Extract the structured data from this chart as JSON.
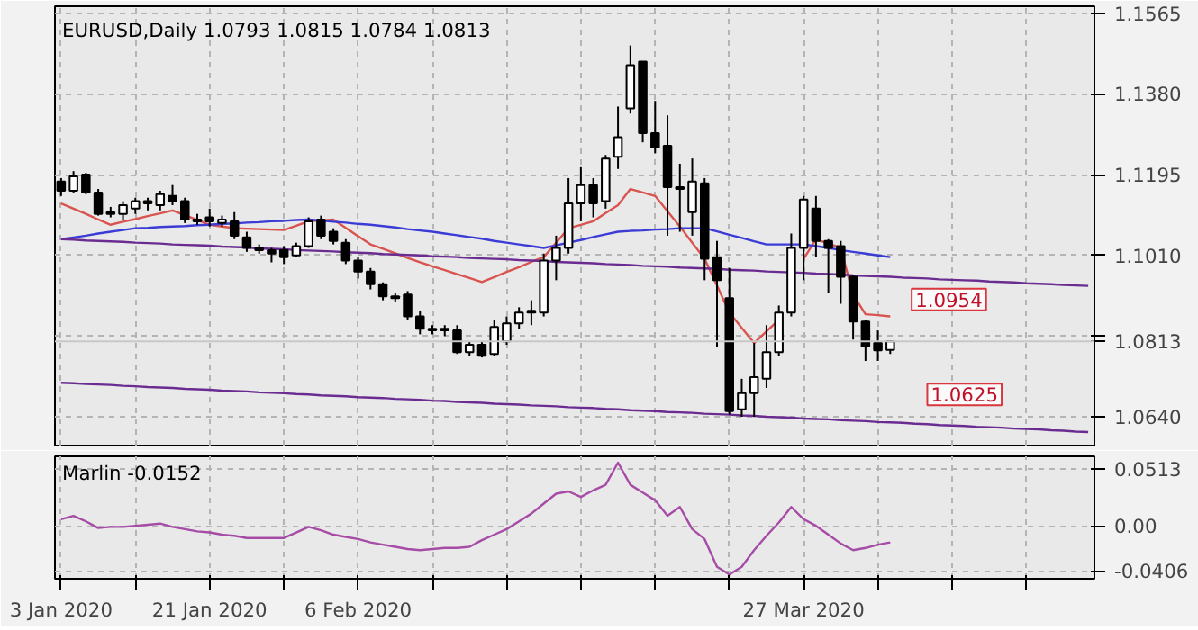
{
  "chart_data": [
    {
      "type": "candlestick",
      "title": "EURUSD,Daily 1.0793 1.0815 1.0784 1.0813",
      "ohlc": [
        [
          1.1179,
          1.1187,
          1.1146,
          1.1158
        ],
        [
          1.1158,
          1.1203,
          1.1154,
          1.1191
        ],
        [
          1.1195,
          1.1199,
          1.115,
          1.1154
        ],
        [
          1.1154,
          1.1162,
          1.1101,
          1.1105
        ],
        [
          1.1105,
          1.1121,
          1.1097,
          1.1109
        ],
        [
          1.1105,
          1.1134,
          1.1092,
          1.1125
        ],
        [
          1.1117,
          1.1142,
          1.1105,
          1.1134
        ],
        [
          1.1134,
          1.1142,
          1.1113,
          1.1129
        ],
        [
          1.1125,
          1.1158,
          1.1113,
          1.115
        ],
        [
          1.1146,
          1.1171,
          1.1125,
          1.1134
        ],
        [
          1.1134,
          1.1142,
          1.1084,
          1.1092
        ],
        [
          1.1092,
          1.1105,
          1.108,
          1.1088
        ],
        [
          1.1097,
          1.1117,
          1.1076,
          1.1088
        ],
        [
          1.1084,
          1.1101,
          1.1076,
          1.1092
        ],
        [
          1.1088,
          1.1109,
          1.1047,
          1.1055
        ],
        [
          1.1051,
          1.1064,
          1.1018,
          1.1027
        ],
        [
          1.1027,
          1.1035,
          1.1014,
          1.1022
        ],
        [
          1.1022,
          1.1027,
          1.0994,
          1.1014
        ],
        [
          1.1022,
          1.1031,
          1.099,
          1.1006
        ],
        [
          1.101,
          1.1039,
          1.1006,
          1.1031
        ],
        [
          1.1031,
          1.1097,
          1.1027,
          1.1088
        ],
        [
          1.1092,
          1.1101,
          1.1047,
          1.1055
        ],
        [
          1.1064,
          1.1072,
          1.1035,
          1.1043
        ],
        [
          1.1039,
          1.1047,
          1.099,
          1.0998
        ],
        [
          1.0998,
          1.1006,
          1.0957,
          1.0973
        ],
        [
          1.0973,
          1.0981,
          1.0932,
          1.0944
        ],
        [
          1.0944,
          1.0948,
          1.0907,
          1.0916
        ],
        [
          1.0916,
          1.0924,
          1.0903,
          1.0912
        ],
        [
          1.092,
          1.0928,
          1.0862,
          1.087
        ],
        [
          1.087,
          1.0883,
          1.0829,
          1.0842
        ],
        [
          1.0842,
          1.085,
          1.0829,
          1.0838
        ],
        [
          1.0838,
          1.085,
          1.0825,
          1.0842
        ],
        [
          1.0838,
          1.085,
          1.0784,
          1.0788
        ],
        [
          1.0788,
          1.0813,
          1.078,
          1.0805
        ],
        [
          1.0805,
          1.0813,
          1.0776,
          1.078
        ],
        [
          1.0784,
          1.0862,
          1.078,
          1.0846
        ],
        [
          1.0813,
          1.087,
          1.0805,
          1.0854
        ],
        [
          1.0854,
          1.0891,
          1.0842,
          1.0879
        ],
        [
          1.0879,
          1.0907,
          1.085,
          1.0883
        ],
        [
          1.0879,
          1.1014,
          1.087,
          1.0998
        ],
        [
          1.0998,
          1.1055,
          1.0953,
          1.1027
        ],
        [
          1.1027,
          1.1187,
          1.1014,
          1.1129
        ],
        [
          1.1129,
          1.1212,
          1.1088,
          1.1171
        ],
        [
          1.1171,
          1.1187,
          1.1097,
          1.1129
        ],
        [
          1.1134,
          1.124,
          1.1117,
          1.1232
        ],
        [
          1.1236,
          1.1351,
          1.1208,
          1.1281
        ],
        [
          1.1347,
          1.1491,
          1.1335,
          1.1446
        ],
        [
          1.1454,
          1.1454,
          1.1269,
          1.129
        ],
        [
          1.129,
          1.1364,
          1.1244,
          1.1257
        ],
        [
          1.1261,
          1.1331,
          1.1055,
          1.1166
        ],
        [
          1.1166,
          1.122,
          1.1064,
          1.1162
        ],
        [
          1.1109,
          1.1232,
          1.1055,
          1.1179
        ],
        [
          1.1175,
          1.1187,
          1.0953,
          1.1002
        ],
        [
          1.1006,
          1.1043,
          1.0801,
          1.0953
        ],
        [
          1.0912,
          1.0981,
          1.0645,
          1.0653
        ],
        [
          1.0657,
          1.0727,
          1.064,
          1.0694
        ],
        [
          1.0694,
          1.0809,
          1.064,
          1.0731
        ],
        [
          1.0727,
          1.085,
          1.0706,
          1.0788
        ],
        [
          1.0788,
          1.0895,
          1.078,
          1.0879
        ],
        [
          1.0879,
          1.106,
          1.087,
          1.1027
        ],
        [
          1.1027,
          1.1146,
          1.0953,
          1.1138
        ],
        [
          1.1117,
          1.1146,
          1.1006,
          1.1043
        ],
        [
          1.1043,
          1.1047,
          1.0924,
          1.1027
        ],
        [
          1.1031,
          1.1043,
          1.0899,
          1.0961
        ],
        [
          1.0961,
          1.0965,
          1.0817,
          1.0858
        ],
        [
          1.0858,
          1.0862,
          1.0768,
          1.0801
        ],
        [
          1.0809,
          1.0838,
          1.0768,
          1.0792
        ],
        [
          1.0793,
          1.0815,
          1.0784,
          1.0813
        ],
        null,
        null,
        null,
        null,
        null,
        null,
        null,
        null,
        null,
        null,
        null,
        null,
        null,
        null,
        null,
        null
      ],
      "series": [
        {
          "type": "line",
          "color": "#d9534f",
          "values": [
            1.1129,
            1.1117,
            1.1105,
            1.1092,
            1.108,
            1.1087,
            1.1093,
            1.11,
            1.1106,
            1.1113,
            1.1102,
            1.1091,
            1.108,
            1.1076,
            1.1072,
            1.1071,
            1.107,
            1.1069,
            1.1068,
            1.1078,
            1.1088,
            1.109,
            1.1092,
            1.1073,
            1.1054,
            1.1035,
            1.1025,
            1.1015,
            1.1004,
            1.0994,
            1.0985,
            1.0976,
            1.0967,
            1.0958,
            1.0949,
            1.096,
            1.0972,
            1.0983,
            1.0995,
            1.1006,
            1.1039,
            1.1072,
            1.108,
            1.1088,
            1.1107,
            1.1125,
            1.1162,
            1.1154,
            1.1146,
            1.1111,
            1.1076,
            1.1039,
            1.1002,
            1.0941,
            1.0879,
            1.0844,
            1.0809,
            1.0836,
            1.0862,
            null,
            1.1002,
            1.1047,
            1.1037,
            1.1027,
            1.092,
            1.0875,
            1.0873,
            1.087,
            null,
            null,
            null,
            null,
            null,
            null,
            null,
            null,
            null,
            null,
            null,
            null,
            null,
            null,
            null,
            null
          ]
        },
        {
          "type": "line",
          "color": "#3b3bd6",
          "values": [
            1.1047,
            1.1051,
            1.1055,
            1.106,
            1.1064,
            1.1068,
            1.1072,
            1.1073,
            1.1075,
            1.1076,
            1.1077,
            1.1079,
            1.108,
            1.1082,
            1.1083,
            1.1085,
            1.1086,
            1.1088,
            1.1089,
            1.1091,
            1.1092,
            1.109,
            1.1087,
            1.1085,
            1.1082,
            1.108,
            1.1077,
            1.1074,
            1.107,
            1.1067,
            1.1064,
            1.106,
            1.1056,
            1.1052,
            1.1048,
            1.1043,
            1.1039,
            1.1035,
            1.1031,
            1.1027,
            1.1033,
            1.1039,
            1.1045,
            1.1052,
            1.1058,
            1.1064,
            1.1066,
            1.1067,
            1.1069,
            1.107,
            1.1072,
            1.1072,
            1.1072,
            1.1065,
            1.1057,
            1.105,
            1.1042,
            1.1035,
            1.1035,
            1.1035,
            1.1035,
            1.1031,
            1.1027,
            1.1022,
            1.1018,
            1.1014,
            1.101,
            1.1006,
            null,
            null,
            null,
            null,
            null,
            null,
            null,
            null,
            null,
            null,
            null,
            null,
            null,
            null,
            null,
            null
          ]
        },
        {
          "type": "line",
          "color": "#6a2c91",
          "values": [
            1.1047,
            1.1046,
            1.1044,
            1.1043,
            1.1042,
            1.1041,
            1.1039,
            1.1038,
            1.1037,
            1.1035,
            1.1034,
            1.1033,
            1.1032,
            1.103,
            1.1029,
            1.1028,
            1.1026,
            1.1025,
            1.1024,
            1.1022,
            1.1021,
            1.102,
            1.1019,
            1.1017,
            1.1016,
            1.1015,
            1.1013,
            1.1012,
            1.1011,
            1.101,
            1.1008,
            1.1007,
            1.1006,
            1.1004,
            1.1003,
            1.1002,
            1.1001,
            1.0999,
            1.0998,
            1.0997,
            1.0995,
            1.0994,
            1.0993,
            1.0992,
            1.099,
            1.0989,
            1.0988,
            1.0986,
            1.0985,
            1.0984,
            1.0982,
            1.0981,
            1.098,
            1.0979,
            1.0977,
            1.0976,
            1.0975,
            1.0973,
            1.0972,
            1.0971,
            1.097,
            1.0968,
            1.0967,
            1.0966,
            1.0964,
            1.0963,
            1.0962,
            1.0961,
            1.0959,
            1.0958,
            1.0957,
            1.0955,
            1.0954,
            1.0953,
            1.0952,
            1.095,
            1.0949,
            1.0948,
            1.0946,
            1.0945,
            1.0944,
            1.0942,
            1.0941,
            1.094
          ]
        },
        {
          "type": "line",
          "color": "#6a2c91",
          "values": [
            1.0718,
            1.0717,
            1.0715,
            1.0714,
            1.0713,
            1.0711,
            1.071,
            1.0708,
            1.0707,
            1.0706,
            1.0704,
            1.0703,
            1.0702,
            1.07,
            1.0699,
            1.0698,
            1.0696,
            1.0695,
            1.0694,
            1.0692,
            1.0691,
            1.0689,
            1.0688,
            1.0687,
            1.0685,
            1.0684,
            1.0683,
            1.0681,
            1.068,
            1.0679,
            1.0677,
            1.0676,
            1.0674,
            1.0673,
            1.0672,
            1.067,
            1.0669,
            1.0668,
            1.0666,
            1.0665,
            1.0664,
            1.0662,
            1.0661,
            1.066,
            1.0658,
            1.0657,
            1.0655,
            1.0654,
            1.0653,
            1.0651,
            1.065,
            1.0649,
            1.0647,
            1.0646,
            1.0645,
            1.0643,
            1.0642,
            1.064,
            1.0639,
            1.0638,
            1.0636,
            1.0635,
            1.0634,
            1.0632,
            1.0631,
            1.063,
            1.0628,
            1.0627,
            1.0626,
            1.0624,
            1.0623,
            1.0621,
            1.062,
            1.0619,
            1.0617,
            1.0616,
            1.0615,
            1.0613,
            1.0612,
            1.0611,
            1.0609,
            1.0608,
            1.0606,
            1.0605
          ]
        }
      ],
      "ylim": [
        1.0574,
        1.1581
      ],
      "yticks": [
        {
          "value": 1.064,
          "label": "1.0640"
        },
        {
          "value": 1.0825,
          "label": null
        },
        {
          "value": 1.101,
          "label": "1.1010"
        },
        {
          "value": 1.1195,
          "label": "1.1195"
        },
        {
          "value": 1.138,
          "label": "1.1380"
        },
        {
          "value": 1.1565,
          "label": "1.1565"
        }
      ],
      "grid": true,
      "tick_labels": "y",
      "ref_lines": [
        {
          "axis": "y",
          "value": 1.0813,
          "label": "1.0813",
          "color": "#c8c8c8"
        }
      ],
      "annotations": [
        {
          "text": "1.0954",
          "y": 1.0954
        },
        {
          "text": "1.0625",
          "y": 1.0625
        }
      ]
    },
    {
      "type": "line",
      "title": "Marlin -0.0152",
      "categories": [
        "3 Jan 2020",
        null,
        null,
        null,
        null,
        null,
        null,
        null,
        null,
        null,
        null,
        null,
        "21 Jan 2020",
        null,
        null,
        null,
        null,
        null,
        null,
        null,
        null,
        null,
        null,
        null,
        "6 Feb 2020",
        null,
        null,
        null,
        null,
        null,
        null,
        null,
        null,
        null,
        null,
        null,
        null,
        null,
        null,
        null,
        null,
        null,
        null,
        null,
        null,
        null,
        null,
        null,
        null,
        null,
        null,
        null,
        null,
        null,
        null,
        null,
        null,
        null,
        null,
        null,
        "27 Mar 2020",
        null,
        null,
        null,
        null,
        null,
        null,
        null,
        null,
        null,
        null,
        null,
        null,
        null,
        null,
        null,
        null,
        null,
        null,
        null,
        null,
        null,
        null,
        null
      ],
      "series": [
        {
          "color": "#a64ca6",
          "values": [
            0.006,
            0.009,
            0.004,
            -0.002,
            -0.001,
            -0.001,
            0,
            0.001,
            0.002,
            -0.001,
            -0.003,
            -0.005,
            -0.006,
            -0.008,
            -0.009,
            -0.011,
            -0.011,
            -0.011,
            -0.011,
            -0.006,
            -0.001,
            -0.004,
            -0.008,
            -0.01,
            -0.012,
            -0.015,
            -0.017,
            -0.019,
            -0.021,
            -0.022,
            -0.021,
            -0.02,
            -0.02,
            -0.019,
            -0.013,
            -0.008,
            -0.003,
            0.004,
            0.011,
            0.02,
            0.029,
            0.031,
            0.026,
            0.032,
            0.037,
            0.057,
            0.037,
            0.03,
            0.023,
            0.009,
            0.017,
            -0.003,
            -0.012,
            -0.037,
            -0.044,
            -0.037,
            -0.022,
            -0.009,
            0.003,
            0.017,
            0.006,
            0,
            -0.008,
            -0.016,
            -0.022,
            -0.02,
            -0.017,
            -0.015,
            null,
            null,
            null,
            null,
            null,
            null,
            null,
            null,
            null,
            null,
            null,
            null,
            null,
            null,
            null,
            null
          ]
        }
      ],
      "ylim": [
        -0.0478,
        0.0627
      ],
      "yticks": [
        {
          "value": -0.0406,
          "label": "-0.0406"
        },
        {
          "value": 0,
          "label": "0.00"
        },
        {
          "value": 0.0513,
          "label": "0.0513"
        }
      ],
      "grid": true
    }
  ]
}
